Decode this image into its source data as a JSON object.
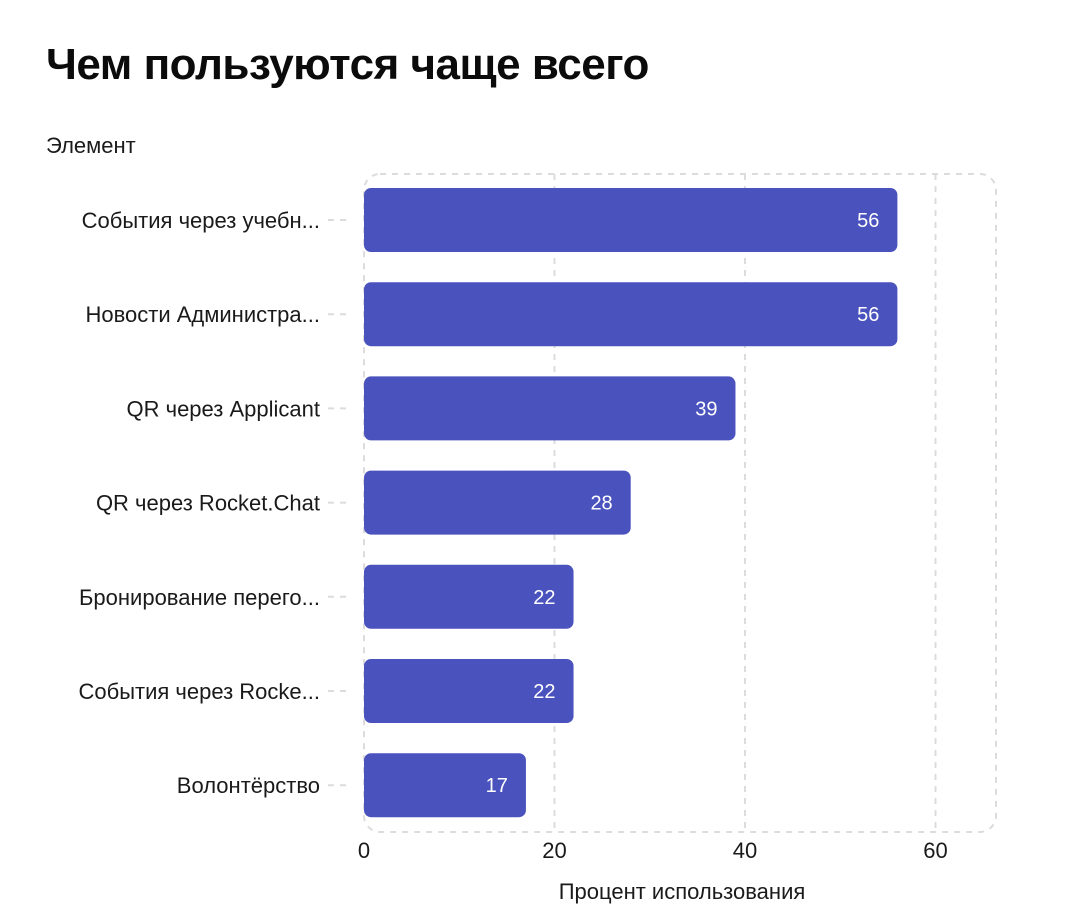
{
  "title": "Чем пользуются чаще всего",
  "y_axis_caption": "Элемент",
  "colors": {
    "bar": "#4A52BE",
    "grid": "#dcdcdc",
    "value_text": "#ffffff",
    "text": "#1a1a1a"
  },
  "chart_data": {
    "type": "bar",
    "orientation": "horizontal",
    "categories": [
      "События через учебн...",
      "Новости Администра...",
      "QR через Applicant",
      "QR через Rocket.Chat",
      "Бронирование перего...",
      "События через Rocke...",
      "Волонтёрство"
    ],
    "values": [
      56,
      56,
      39,
      28,
      22,
      22,
      17
    ],
    "title": "Чем пользуются чаще всего",
    "xlabel": "Процент использования",
    "ylabel": "Элемент",
    "xlim": [
      0,
      60
    ],
    "x_ticks": [
      "0",
      "20",
      "40",
      "60"
    ],
    "x_tick_values": [
      0,
      20,
      40,
      60
    ],
    "grid": true,
    "data_labels": true
  }
}
